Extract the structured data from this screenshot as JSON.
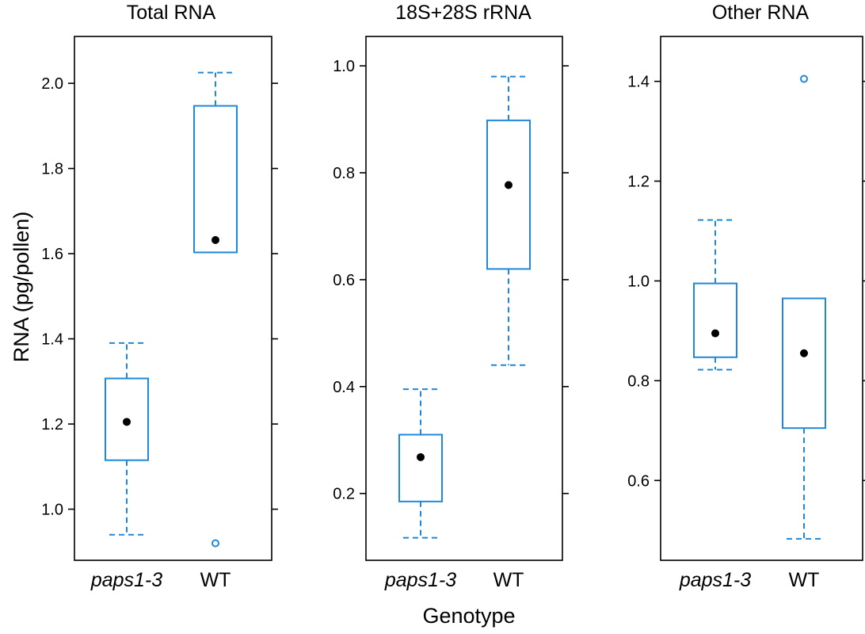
{
  "colors": {
    "box": "#1f88d8",
    "median": "#000000",
    "axis": "#000000"
  },
  "figure": {
    "ylabel": "RNA (pg/pollen)",
    "xlabel": "Genotype"
  },
  "chart_data": [
    {
      "type": "box",
      "title": "Total RNA",
      "categories": [
        "paps1-3",
        "WT"
      ],
      "yticks": [
        "1.0",
        "1.2",
        "1.4",
        "1.6",
        "1.8",
        "2.0"
      ],
      "ylim": [
        0.88,
        2.11
      ],
      "boxes": [
        {
          "category": "paps1-3",
          "whisker_low": 0.94,
          "q1": 1.115,
          "median": 1.205,
          "q3": 1.307,
          "whisker_high": 1.39,
          "outliers": []
        },
        {
          "category": "WT",
          "whisker_low": 1.603,
          "q1": 1.603,
          "median": 1.632,
          "q3": 1.947,
          "whisker_high": 2.025,
          "outliers": [
            0.92
          ]
        }
      ]
    },
    {
      "type": "box",
      "title": "18S+28S rRNA",
      "categories": [
        "paps1-3",
        "WT"
      ],
      "yticks": [
        "0.2",
        "0.4",
        "0.6",
        "0.8",
        "1.0"
      ],
      "ylim": [
        0.075,
        1.055
      ],
      "boxes": [
        {
          "category": "paps1-3",
          "whisker_low": 0.117,
          "q1": 0.185,
          "median": 0.268,
          "q3": 0.31,
          "whisker_high": 0.395,
          "outliers": []
        },
        {
          "category": "WT",
          "whisker_low": 0.44,
          "q1": 0.62,
          "median": 0.777,
          "q3": 0.898,
          "whisker_high": 0.98,
          "outliers": []
        }
      ]
    },
    {
      "type": "box",
      "title": "Other RNA",
      "categories": [
        "paps1-3",
        "WT"
      ],
      "yticks": [
        "0.6",
        "0.8",
        "1.0",
        "1.2",
        "1.4"
      ],
      "ylim": [
        0.44,
        1.49
      ],
      "boxes": [
        {
          "category": "paps1-3",
          "whisker_low": 0.822,
          "q1": 0.847,
          "median": 0.895,
          "q3": 0.995,
          "whisker_high": 1.122,
          "outliers": []
        },
        {
          "category": "WT",
          "whisker_low": 0.483,
          "q1": 0.705,
          "median": 0.855,
          "q3": 0.965,
          "whisker_high": 0.965,
          "outliers": [
            1.405
          ]
        }
      ]
    }
  ]
}
